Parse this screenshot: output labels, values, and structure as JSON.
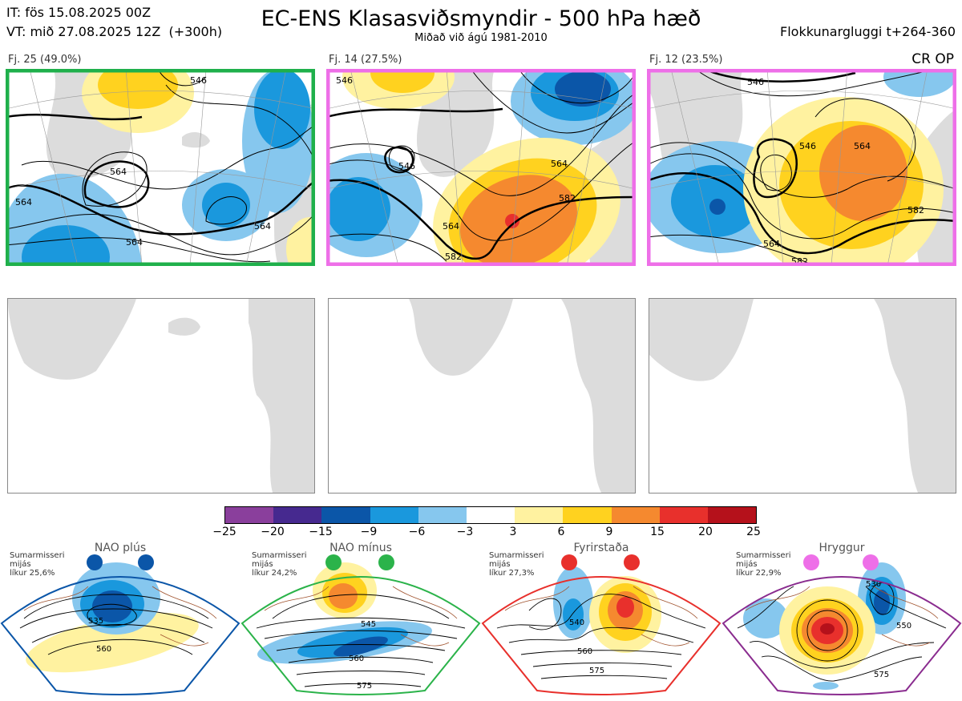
{
  "header": {
    "it_line": "IT: fös 15.08.2025 00Z",
    "vt_line": "VT: mið 27.08.2025 12Z  (+300h)",
    "title": "EC-ENS Klasasviðsmyndir - 500 hPa hæð",
    "subtitle": "Miðað við ágú 1981-2010",
    "window": "Flokkunargluggi t+264-360",
    "cr_op": "CR OP"
  },
  "clusters": [
    {
      "label": "Fj. 25 (49.0%)",
      "border_color": "#1fb04b",
      "contours": [
        "564",
        "564",
        "564",
        "564",
        "546"
      ]
    },
    {
      "label": "Fj. 14 (27.5%)",
      "border_color": "#ee6fe8",
      "contours": [
        "546",
        "546",
        "564",
        "582",
        "564",
        "582"
      ]
    },
    {
      "label": "Fj. 12 (23.5%)",
      "border_color": "#ee6fe8",
      "contours": [
        "546",
        "546",
        "564",
        "582",
        "564",
        "582"
      ]
    }
  ],
  "colorbar": {
    "ticks": [
      "−25",
      "−20",
      "−15",
      "−9",
      "−6",
      "−3",
      "3",
      "6",
      "9",
      "15",
      "20",
      "25"
    ],
    "colors": [
      "#8a3f9c",
      "#46298f",
      "#0b56a8",
      "#1a98dd",
      "#86c7ee",
      "#ffffff",
      "#fff2a0",
      "#ffd21f",
      "#f5892f",
      "#e8302c",
      "#b5111b"
    ]
  },
  "regimes": [
    {
      "name": "NAO plús",
      "season": "Sumarmisseri",
      "mean": "mijás",
      "prob": "líkur 25,6%",
      "color": "#0b56a8",
      "contours": [
        "535",
        "560"
      ]
    },
    {
      "name": "NAO mínus",
      "season": "Sumarmisseri",
      "mean": "mijás",
      "prob": "líkur 24,2%",
      "color": "#2bb34a",
      "contours": [
        "545",
        "560",
        "575"
      ]
    },
    {
      "name": "Fyrirstaða",
      "season": "Sumarmisseri",
      "mean": "mijás",
      "prob": "líkur 27,3%",
      "color": "#e8302c",
      "contours": [
        "540",
        "560",
        "575"
      ]
    },
    {
      "name": "Hryggur",
      "season": "Sumarmisseri",
      "mean": "mijás",
      "prob": "líkur 22,9%",
      "color": "#8a2c8f",
      "contours": [
        "530",
        "550",
        "575"
      ]
    }
  ]
}
